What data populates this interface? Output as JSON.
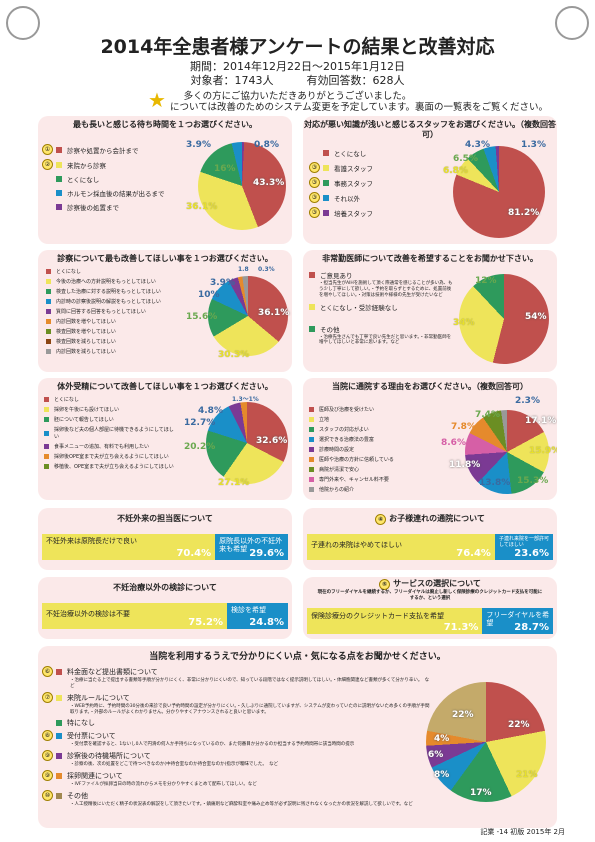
{
  "header": {
    "title": "2014年全患者様アンケートの結果と改善対応",
    "period": "期間：2014年12月22日～2015年1月12日",
    "targets": "対象者：1743人　　　有効回答数：628人",
    "thanks": "多くの方にご協力いただきありがとうございました。",
    "star_note": "については改善のためのシステム変更を予定しています。裏面の一覧表をご覧ください。"
  },
  "q1": {
    "title": "最も長いと感じる待ち時間を１つお選びください。",
    "items": [
      {
        "n": "①",
        "label": "診察や処置から会計まで",
        "color": "#c0504d"
      },
      {
        "n": "②",
        "label": "来院から診察",
        "color": "#eee45a"
      },
      {
        "n": "",
        "label": "とくになし",
        "color": "#2e9a5c"
      },
      {
        "n": "",
        "label": "ホルモン採血後の結果が出るまで",
        "color": "#1a8fc8"
      },
      {
        "n": "",
        "label": "診察後の処置まで",
        "color": "#7b3a94"
      }
    ],
    "labels": [
      "43.3%",
      "36.1%",
      "16%",
      "3.9%",
      "0.8%"
    ]
  },
  "q2": {
    "title": "対応が悪い知識が浅いと感じるスタッフをお選びください。（複数回答可）",
    "items": [
      {
        "n": "",
        "label": "とくになし",
        "color": "#c0504d"
      },
      {
        "n": "③",
        "label": "看護スタッフ",
        "color": "#eee45a"
      },
      {
        "n": "③",
        "label": "事務スタッフ",
        "color": "#2e9a5c"
      },
      {
        "n": "③",
        "label": "それ以外",
        "color": "#1a8fc8"
      },
      {
        "n": "③",
        "label": "培養スタッフ",
        "color": "#7b3a94"
      }
    ],
    "labels": [
      "81.2%",
      "6.8%",
      "6.5%",
      "4.3%",
      "1.3%"
    ]
  },
  "q3": {
    "title": "診察について最も改善してほしい事を１つお選びください。",
    "items": [
      "とくになし",
      "今後の治療への方針説明をもっとしてほしい",
      "検査した治療に対する説明をもっとしてほしい",
      "内診時の診察後説明の解説をもっとしてほしい",
      "質問に回答する回答をもっとしてほしい",
      "内診回数を増やしてほしい",
      "検査回数を増やしてほしい",
      "検査回数を減らしてほしい",
      "内診回数を減らしてほしい"
    ],
    "labels": [
      "36.1%",
      "30.3%",
      "15.6%",
      "10%",
      "3.9%",
      "1.8",
      "0.3%"
    ]
  },
  "q4": {
    "title": "非常勤医師について改善を希望することをお聞かせ下さい。",
    "items": [
      {
        "label": "ご意見あり",
        "color": "#c0504d"
      },
      {
        "label": "とくになし・受診経験なし",
        "color": "#eee45a"
      },
      {
        "label": "その他",
        "color": "#2e9a5c"
      }
    ],
    "notes_a": "・担当先生がAIHを施術して頂く際通常を感じることが多い為、もう少し丁寧にして欲しい。・予約を取らずとするために、処置前後を増やしてほしい。・対策は技術や様様の先生が受けたいなど",
    "notes_b": "・治療先生さんでも丁寧で良い先生だと思います。・非常勤医師を増やしてほしいと非常に思います。など",
    "labels": [
      "54%",
      "34%",
      "12%"
    ]
  },
  "q5": {
    "title": "体外受精について改善してほしい事を１つお選びください。",
    "items": [
      "とくになし",
      "採卵を午後にも設けてほしい",
      "胚について報告してほしい",
      "採卵後など夫の個人部屋に待機できるようにしてほしい",
      "食事メニューの追加、有料でも利用したい",
      "採卵後OPE室まで夫が立ち会えるようにしてほしい",
      "移植後、OPE室まで夫が立ち会えるようにしてほしい"
    ],
    "labels": [
      "32.6%",
      "27.1%",
      "20.2%",
      "12.7%",
      "4.8%",
      "1.3～1%"
    ]
  },
  "q6": {
    "title": "当院に通院する理由をお選びください。（複数回答可）",
    "items": [
      "医師及び治療を受けたい",
      "立地",
      "スタッフの対応がよい",
      "選択できる治療法の豊富",
      "診療時間の設定",
      "医師や治療の方針に信頼している",
      "病院が清潔で安心",
      "専門外来や、キャンセル料不要",
      "他院からの紹介"
    ],
    "labels": [
      "17.1%",
      "15.9%",
      "15.3%",
      "13.8%",
      "11.8%",
      "8.6%",
      "7.8%",
      "7.4%",
      "2.3%"
    ]
  },
  "q7": {
    "title": "不妊外来の担当医について",
    "a_text": "不妊外来は原院長だけで良い",
    "a_val": "70.4%",
    "b_text": "原院長以外の不妊外来も希望",
    "b_val": "29.6%"
  },
  "q8": {
    "title": "お子様連れの通院について",
    "a_text": "子連れの来院はやめてほしい",
    "a_val": "76.4%",
    "b_text": "子連れ来院を一部許可してほしい",
    "b_val": "23.6%"
  },
  "q9": {
    "title": "不妊治療以外の検診について",
    "a_text": "不妊治療以外の検診は不要",
    "a_val": "75.2%",
    "b_text": "検診を希望",
    "b_val": "24.8%"
  },
  "q10": {
    "title": "サービスの選択について",
    "sub": "現在のフリーダイヤルを継続するか、フリーダイヤルは廃止し新しく保険診療のクレジットカード支払を可能にするか、という選択",
    "a_text": "保険診療分のクレジットカード支払を希望",
    "a_val": "71.3%",
    "b_text": "フリーダイヤルを希望",
    "b_val": "28.7%"
  },
  "q11": {
    "title": "当院を利用するうえで分かりにくい点・気になる点をお聞かせください。",
    "items": [
      {
        "n": "⑥",
        "label": "料金面など提出書類について",
        "note": "・治療に当たる上で提出する書類等手順が分かりにくく、非常に分かりにくいので、知っている段階ではなく提示説明してほしい。・体細胞関連など書類が多くて分かり辛い。　など"
      },
      {
        "n": "⑦",
        "label": "来院ルールについて",
        "note": "・WEB予約時に、予約時間の30分後の来診で良い予約時間の設定が分かりにくい。・久しぶりに通院していますが、システムが変わっていたのに説明がないため多くの手順が手間取ります。・外部のルールがよくわかりません。分かりやすくアナウンスされると良いと思います。"
      },
      {
        "n": "",
        "label": "特になし",
        "note": ""
      },
      {
        "n": "⑧",
        "label": "受付票について",
        "note": "・受付票を確認すると、1ないし0人で円滑の何人か手持ちになっているのか、また何番目か分かるのか担当する予約時間帯に該当時間の提示"
      },
      {
        "n": "⑨",
        "label": "診察後の待機場所について",
        "note": "・診察の後、次の処置をどこで待つべきなのか(中待合室なのか待合室なのか)指示が曖昧でした。　など"
      },
      {
        "n": "⑨",
        "label": "採卵関連について",
        "note": "・IVFファイルが採卵当日の時の流れからメモを分かりやすくまとめて配布してほしい。など"
      },
      {
        "n": "⑩",
        "label": "その他",
        "note": "・人工授精後にいただく精子の状況表の解説をして頂きたいです。・鎮痛剤など麻酔科室や痛み止め等が必ず説明に残されなくなったかの状況を解説して欲しいです。など"
      }
    ],
    "labels": [
      "22%",
      "21%",
      "17%",
      "8%",
      "6%",
      "4%",
      "22%"
    ]
  },
  "footer": {
    "note": "記業 -14 初版 2015年 2月"
  }
}
